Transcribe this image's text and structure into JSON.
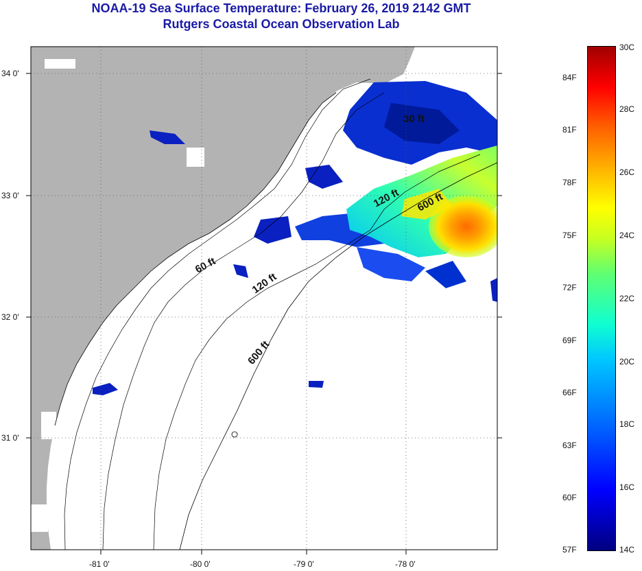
{
  "title": {
    "line1": "NOAA-19 Sea Surface Temperature:  February 26, 2019 2142 GMT",
    "line2": "Rutgers Coastal Ocean Observation Lab"
  },
  "map": {
    "lon_ticks": [
      "-81 0'",
      "-80 0'",
      "-79 0'",
      "-78 0'"
    ],
    "lat_ticks": [
      "34 0'",
      "33 0'",
      "32 0'",
      "31 0'"
    ],
    "contours": [
      {
        "label": "30 ft"
      },
      {
        "label": "60 ft"
      },
      {
        "label": "120 ft"
      },
      {
        "label": "600 ft"
      },
      {
        "label": "120 ft"
      },
      {
        "label": "600 ft"
      }
    ],
    "colors": {
      "land": "#b3b3b3",
      "water": "#ffffff",
      "grid": "#555555"
    }
  },
  "colorbar": {
    "fahrenheit": [
      "84F",
      "81F",
      "78F",
      "75F",
      "72F",
      "69F",
      "66F",
      "63F",
      "60F",
      "57F"
    ],
    "celsius": [
      "30C",
      "28C",
      "26C",
      "24C",
      "22C",
      "20C",
      "18C",
      "16C",
      "14C"
    ]
  }
}
